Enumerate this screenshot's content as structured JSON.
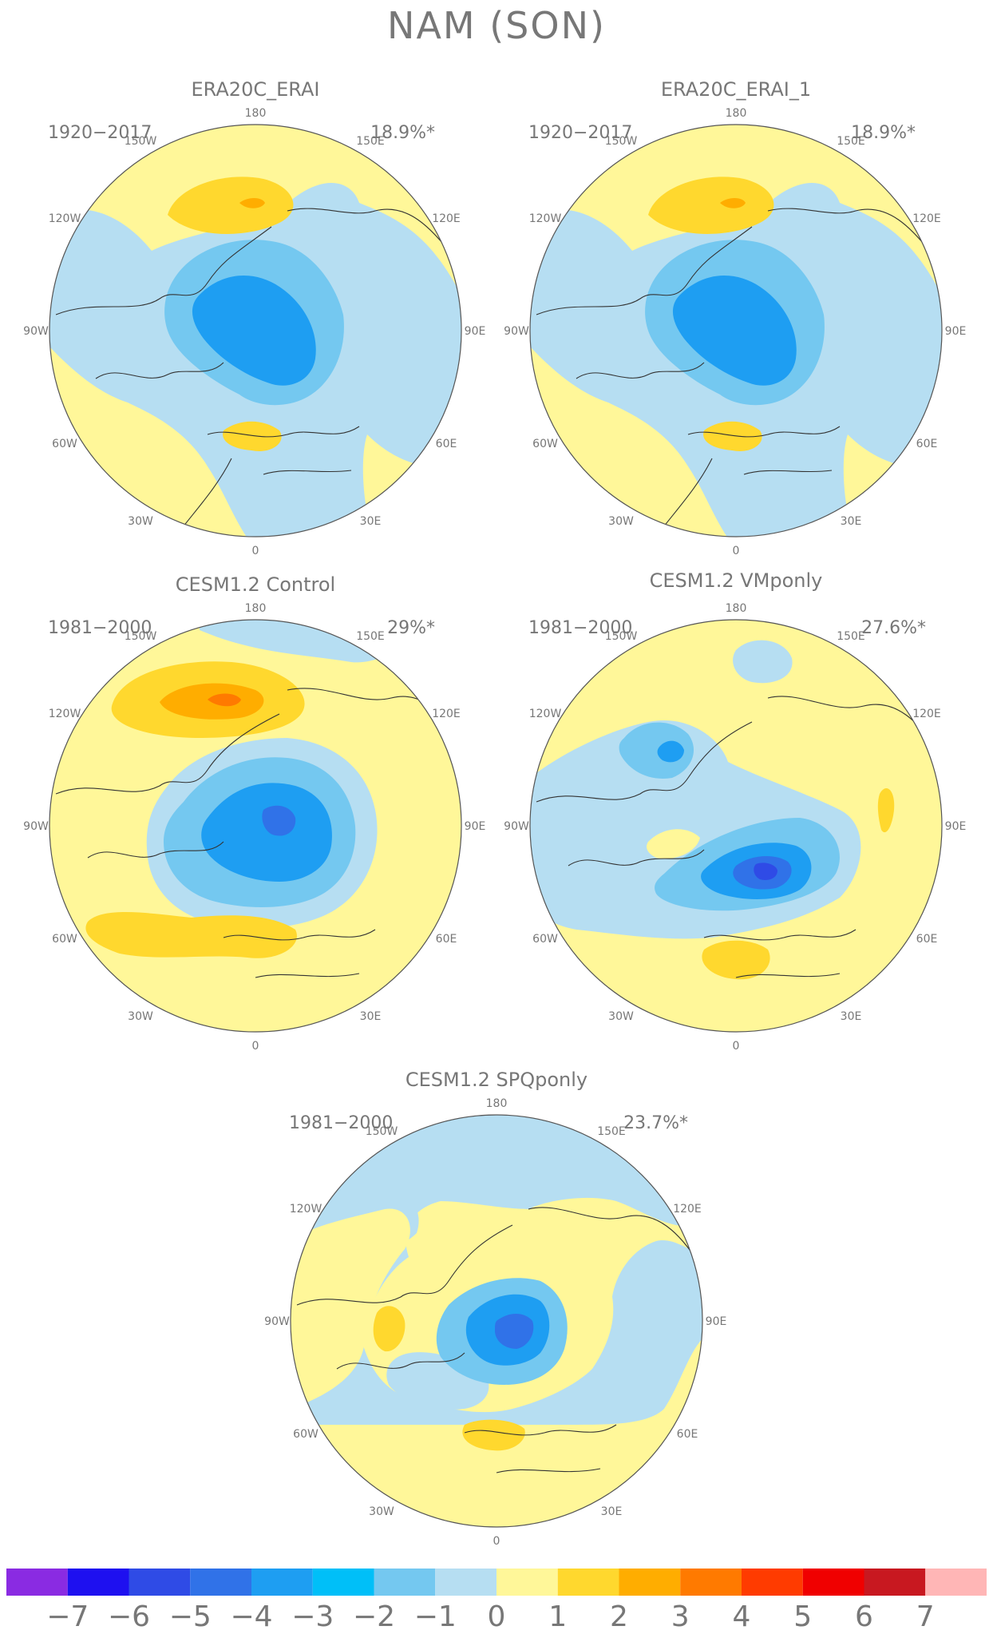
{
  "main_title": "NAM (SON)",
  "colors": {
    "minus7": "#8a2be2",
    "minus6": "#1e10f0",
    "minus5": "#2f4be6",
    "minus4": "#3072e8",
    "minus3": "#1e9ef2",
    "minus2": "#00bff8",
    "minus1": "#74c8f0",
    "zero_neg": "#b6def2",
    "zero_pos": "#fff799",
    "plus1": "#ffd82e",
    "plus2": "#ffad00",
    "plus3": "#ff7a00",
    "plus4": "#ff3b00",
    "plus5": "#f00000",
    "plus6": "#c81820",
    "plus7": "#ffb6b6"
  },
  "panels": [
    {
      "title": "ERA20C_ERAI",
      "period": "1920−2017",
      "variance": "18.9%*"
    },
    {
      "title": "ERA20C_ERAI_1",
      "period": "1920−2017",
      "variance": "18.9%*"
    },
    {
      "title": "CESM1.2 Control",
      "period": "1981−2000",
      "variance": "29%*"
    },
    {
      "title": "CESM1.2 VMponly",
      "period": "1981−2000",
      "variance": "27.6%*"
    },
    {
      "title": "CESM1.2 SPQponly",
      "period": "1981−2000",
      "variance": "23.7%*"
    }
  ],
  "lon_labels": [
    "180",
    "150E",
    "120E",
    "90E",
    "60E",
    "30E",
    "0",
    "30W",
    "60W",
    "90W",
    "120W",
    "150W"
  ],
  "colorbar": {
    "tick_labels": [
      "−7",
      "−6",
      "−5",
      "−4",
      "−3",
      "−2",
      "−1",
      "0",
      "1",
      "2",
      "3",
      "4",
      "5",
      "6",
      "7"
    ],
    "box_colors": [
      "minus7",
      "minus6",
      "minus5",
      "minus4",
      "minus3",
      "minus2",
      "minus1",
      "zero_neg",
      "zero_pos",
      "plus1",
      "plus2",
      "plus3",
      "plus4",
      "plus5",
      "plus6",
      "plus7"
    ]
  }
}
